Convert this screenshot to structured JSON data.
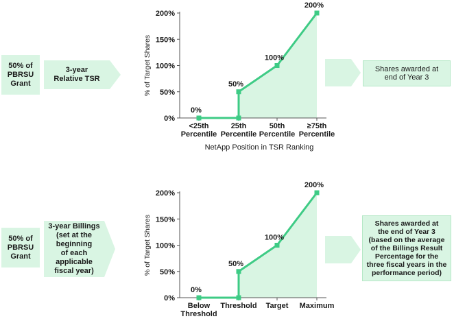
{
  "colors": {
    "accent": "#3ecb85",
    "fill": "#d9f5e3",
    "text": "#1a1a1a"
  },
  "top": {
    "grant_label": "50% of\nPBRSU\nGrant",
    "metric_label": "3-year\nRelative TSR",
    "result_label": "Shares awarded at\nend of Year 3",
    "chart_data": {
      "type": "line",
      "ylabel": "% of Target Shares",
      "xlabel": "NetApp Position in TSR Ranking",
      "y_ticks": [
        "0%",
        "50%",
        "100%",
        "150%",
        "200%"
      ],
      "ylim": [
        0,
        200
      ],
      "categories": [
        {
          "line1": "<25th",
          "line2": "Percentile"
        },
        {
          "line1": "25th",
          "line2": "Percentile"
        },
        {
          "line1": "50th",
          "line2": "Percentile"
        },
        {
          "line1": "≥75th",
          "line2": "Percentile"
        }
      ],
      "x": [
        0,
        1,
        1,
        2,
        3
      ],
      "y": [
        0,
        0,
        50,
        100,
        200
      ],
      "point_labels": [
        {
          "x": 0,
          "y": 0,
          "text": "0%"
        },
        {
          "x": 1,
          "y": 50,
          "text": "50%"
        },
        {
          "x": 2,
          "y": 100,
          "text": "100%"
        },
        {
          "x": 3,
          "y": 200,
          "text": "200%"
        }
      ]
    }
  },
  "bottom": {
    "grant_label": "50% of\nPBRSU\nGrant",
    "metric_label": "3-year Billings\n(set at the beginning\nof each applicable\nfiscal year)",
    "result_label": "Shares awarded at\nthe end of Year 3\n(based on the average\nof the Billings Result\nPercentage for the\nthree fiscal years in the\nperformance period)",
    "chart_data": {
      "type": "line",
      "ylabel": "% of Target Shares",
      "xlabel": "",
      "y_ticks": [
        "0%",
        "50%",
        "100%",
        "150%",
        "200%"
      ],
      "ylim": [
        0,
        200
      ],
      "categories": [
        {
          "line1": "Below",
          "line2": "Threshold"
        },
        {
          "line1": "Threshold",
          "line2": ""
        },
        {
          "line1": "Target",
          "line2": ""
        },
        {
          "line1": "Maximum",
          "line2": ""
        }
      ],
      "x": [
        0,
        1,
        1,
        2,
        3
      ],
      "y": [
        0,
        0,
        50,
        100,
        200
      ],
      "point_labels": [
        {
          "x": 0,
          "y": 0,
          "text": "0%"
        },
        {
          "x": 1,
          "y": 50,
          "text": "50%"
        },
        {
          "x": 2,
          "y": 100,
          "text": "100%"
        },
        {
          "x": 3,
          "y": 200,
          "text": "200%"
        }
      ]
    }
  }
}
